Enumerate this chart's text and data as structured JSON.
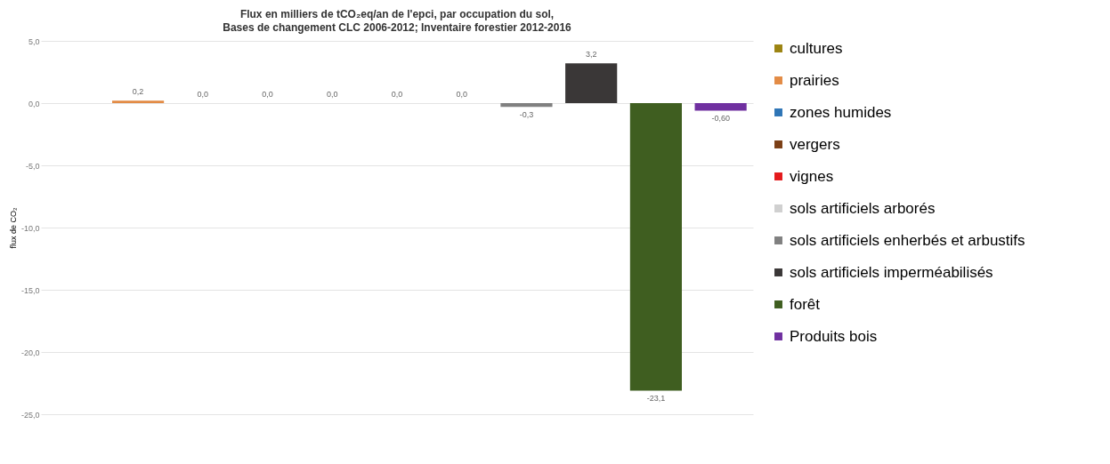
{
  "chart_data": {
    "type": "bar",
    "title": "Flux en milliers de tCO₂eq/an de l'epci, par occupation du sol,",
    "subtitle": "Bases de changement CLC 2006-2012; Inventaire forestier 2012-2016",
    "ylabel": "flux de CO₂",
    "categories": [
      null,
      null,
      null,
      null,
      null,
      null,
      null,
      null,
      null,
      null,
      null
    ],
    "series": [
      {
        "name": "cultures",
        "color": "#9c8412",
        "values": [
          null,
          null,
          null,
          null,
          null,
          null,
          null,
          null,
          null,
          null,
          null
        ],
        "value_labels": [
          null,
          null,
          null,
          null,
          null,
          null,
          null,
          null,
          null,
          null,
          null
        ]
      },
      {
        "name": "prairies",
        "color": "#e38b45",
        "values": [
          null,
          0.2,
          null,
          null,
          null,
          null,
          null,
          null,
          null,
          null,
          null
        ],
        "value_labels": [
          null,
          "0,2",
          null,
          null,
          null,
          null,
          null,
          null,
          null,
          null,
          null
        ]
      },
      {
        "name": "zones humides",
        "color": "#2e75b6",
        "values": [
          null,
          null,
          0,
          null,
          null,
          null,
          null,
          null,
          null,
          null,
          null
        ],
        "value_labels": [
          null,
          null,
          "0,0",
          null,
          null,
          null,
          null,
          null,
          null,
          null,
          null
        ]
      },
      {
        "name": "vergers",
        "color": "#7b3f16",
        "values": [
          null,
          null,
          null,
          0,
          null,
          null,
          null,
          null,
          null,
          null,
          null
        ],
        "value_labels": [
          null,
          null,
          null,
          "0,0",
          null,
          null,
          null,
          null,
          null,
          null,
          null
        ]
      },
      {
        "name": "vignes",
        "color": "#e41a1c",
        "values": [
          null,
          null,
          null,
          null,
          0,
          null,
          null,
          null,
          null,
          null,
          null
        ],
        "value_labels": [
          null,
          null,
          null,
          null,
          "0,0",
          null,
          null,
          null,
          null,
          null,
          null
        ]
      },
      {
        "name": "sols artificiels arborés",
        "color": "#d0d0d0",
        "values": [
          null,
          null,
          null,
          null,
          null,
          0,
          null,
          null,
          null,
          null,
          null
        ],
        "value_labels": [
          null,
          null,
          null,
          null,
          null,
          "0,0",
          null,
          null,
          null,
          null,
          null
        ]
      },
      {
        "color": "#bfbfbf",
        "values": [
          null,
          null,
          null,
          null,
          null,
          null,
          0,
          null,
          null,
          null,
          null
        ],
        "value_labels": [
          null,
          null,
          null,
          null,
          null,
          null,
          "0,0",
          null,
          null,
          null,
          null
        ]
      },
      {
        "name": "sols artificiels enherbés et arbustifs",
        "color": "#808080",
        "values": [
          null,
          null,
          null,
          null,
          null,
          null,
          null,
          -0.3,
          null,
          null,
          null
        ],
        "value_labels": [
          null,
          null,
          null,
          null,
          null,
          null,
          null,
          "-0,3",
          null,
          null,
          null
        ]
      },
      {
        "name": "sols artificiels imperméabilisés",
        "color": "#3a3737",
        "values": [
          null,
          null,
          null,
          null,
          null,
          null,
          null,
          null,
          3.2,
          null,
          null
        ],
        "value_labels": [
          null,
          null,
          null,
          null,
          null,
          null,
          null,
          null,
          "3,2",
          null,
          null
        ]
      },
      {
        "name": "forêt",
        "color": "#3f5e20",
        "values": [
          null,
          null,
          null,
          null,
          null,
          null,
          null,
          null,
          null,
          -23.1,
          null
        ],
        "value_labels": [
          null,
          null,
          null,
          null,
          null,
          null,
          null,
          null,
          null,
          "-23,1",
          null
        ]
      },
      {
        "name": "Produits bois",
        "color": "#7030a0",
        "values": [
          null,
          null,
          null,
          null,
          null,
          null,
          null,
          null,
          null,
          null,
          -0.6
        ],
        "value_labels": [
          null,
          null,
          null,
          null,
          null,
          null,
          null,
          null,
          null,
          null,
          "-0,60"
        ]
      }
    ],
    "ylim": [
      -25,
      5
    ],
    "yticks": [
      {
        "value": 5,
        "label": "5,0"
      },
      {
        "value": 0,
        "label": "0,0"
      },
      {
        "value": -5,
        "label": "-5,0"
      },
      {
        "value": -10,
        "label": "-10,0"
      },
      {
        "value": -15,
        "label": "-15,0"
      },
      {
        "value": -20,
        "label": "-20,0"
      },
      {
        "value": -25,
        "label": "-25,0"
      }
    ],
    "grid": "y",
    "legend": "right"
  }
}
